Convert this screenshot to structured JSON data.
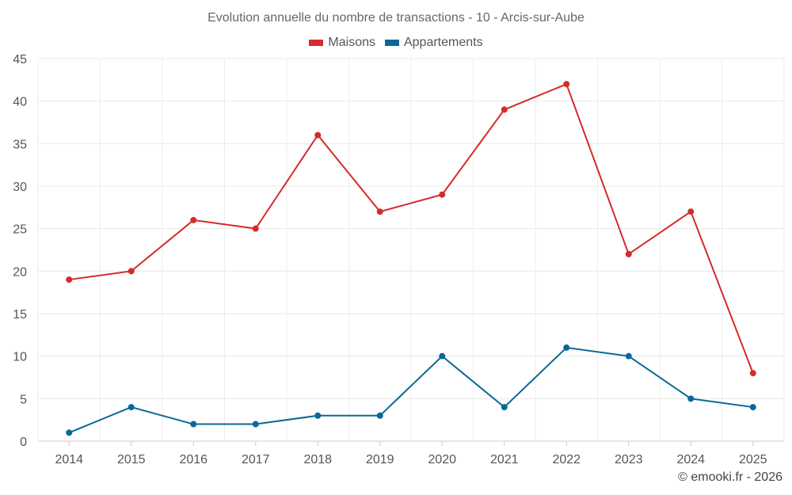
{
  "chart_data": {
    "type": "line",
    "title": "Evolution annuelle du nombre de transactions - 10 - Arcis-sur-Aube",
    "categories": [
      "2014",
      "2015",
      "2016",
      "2017",
      "2018",
      "2019",
      "2020",
      "2021",
      "2022",
      "2023",
      "2024",
      "2025"
    ],
    "series": [
      {
        "name": "Maisons",
        "color": "#d52b2b",
        "values": [
          19,
          20,
          26,
          25,
          36,
          27,
          29,
          39,
          42,
          22,
          27,
          8
        ]
      },
      {
        "name": "Appartements",
        "color": "#0a6799",
        "values": [
          1,
          4,
          2,
          2,
          3,
          3,
          10,
          4,
          11,
          10,
          5,
          4
        ]
      }
    ],
    "ylim": [
      0,
      45
    ],
    "yticks": [
      0,
      5,
      10,
      15,
      20,
      25,
      30,
      35,
      40,
      45
    ],
    "grid": true,
    "legend_position": "top-center",
    "xlabel": "",
    "ylabel": ""
  },
  "credit": "© emooki.fr - 2026"
}
